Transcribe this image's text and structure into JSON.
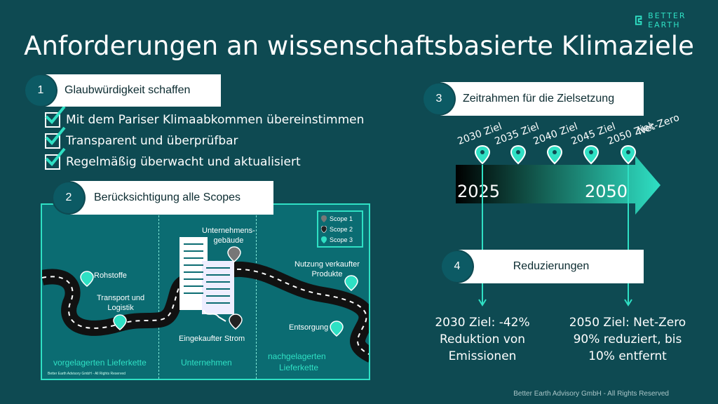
{
  "brand": {
    "name": "BETTER EARTH"
  },
  "title": "Anforderungen an wissenschaftsbasierte Klimaziele",
  "section1": {
    "number": "1",
    "heading": "Glaubwürdigkeit schaffen",
    "items": [
      "Mit dem Pariser Klimaabkommen übereinstimmen",
      "Transparent und überprüfbar",
      "Regelmäßig überwacht und aktualisiert"
    ]
  },
  "section2": {
    "number": "2",
    "heading": "Berücksichtigung alle Scopes",
    "labels": {
      "rohstoffe": "Rohstoffe",
      "transport": "Transport und",
      "logistik": "Logistik",
      "gebaeude1": "Unternehmens-",
      "gebaeude2": "gebäude",
      "strom": "Eingekaufter Strom",
      "nutzung1": "Nutzung verkaufter",
      "nutzung2": "Produkte",
      "entsorgung": "Entsorgung"
    },
    "zones": {
      "upstream": "vorgelagerten Lieferkette",
      "company": "Unternehmen",
      "downstream1": "nachgelagerten",
      "downstream2": "Lieferkette"
    },
    "legend": [
      "Scope 1",
      "Scope 2",
      "Scope 3"
    ],
    "copyright": "Better Earth Advisory GmbH - All Rights Reserved"
  },
  "section3": {
    "number": "3",
    "heading": "Zeitrahmen für die Zielsetzung",
    "milestones": [
      "2030 Ziel",
      "2035 Ziel",
      "2040 Ziel",
      "2045 Ziel"
    ],
    "final_line1": "2050 Ziel:",
    "final_line2": "Net-Zero",
    "start_year": "2025",
    "end_year": "2050"
  },
  "section4": {
    "number": "4",
    "heading": "Reduzierungen",
    "goal2030": [
      "2030 Ziel: -42%",
      "Reduktion von",
      "Emissionen"
    ],
    "goal2050": [
      "2050 Ziel: Net-Zero",
      "90% reduziert, bis",
      "10% entfernt"
    ]
  },
  "footer": "Better Earth Advisory GmbH - All Rights Reserved",
  "colors": {
    "background": "#0e4a52",
    "accent": "#2fe0c4",
    "circle": "#0c5a64"
  }
}
